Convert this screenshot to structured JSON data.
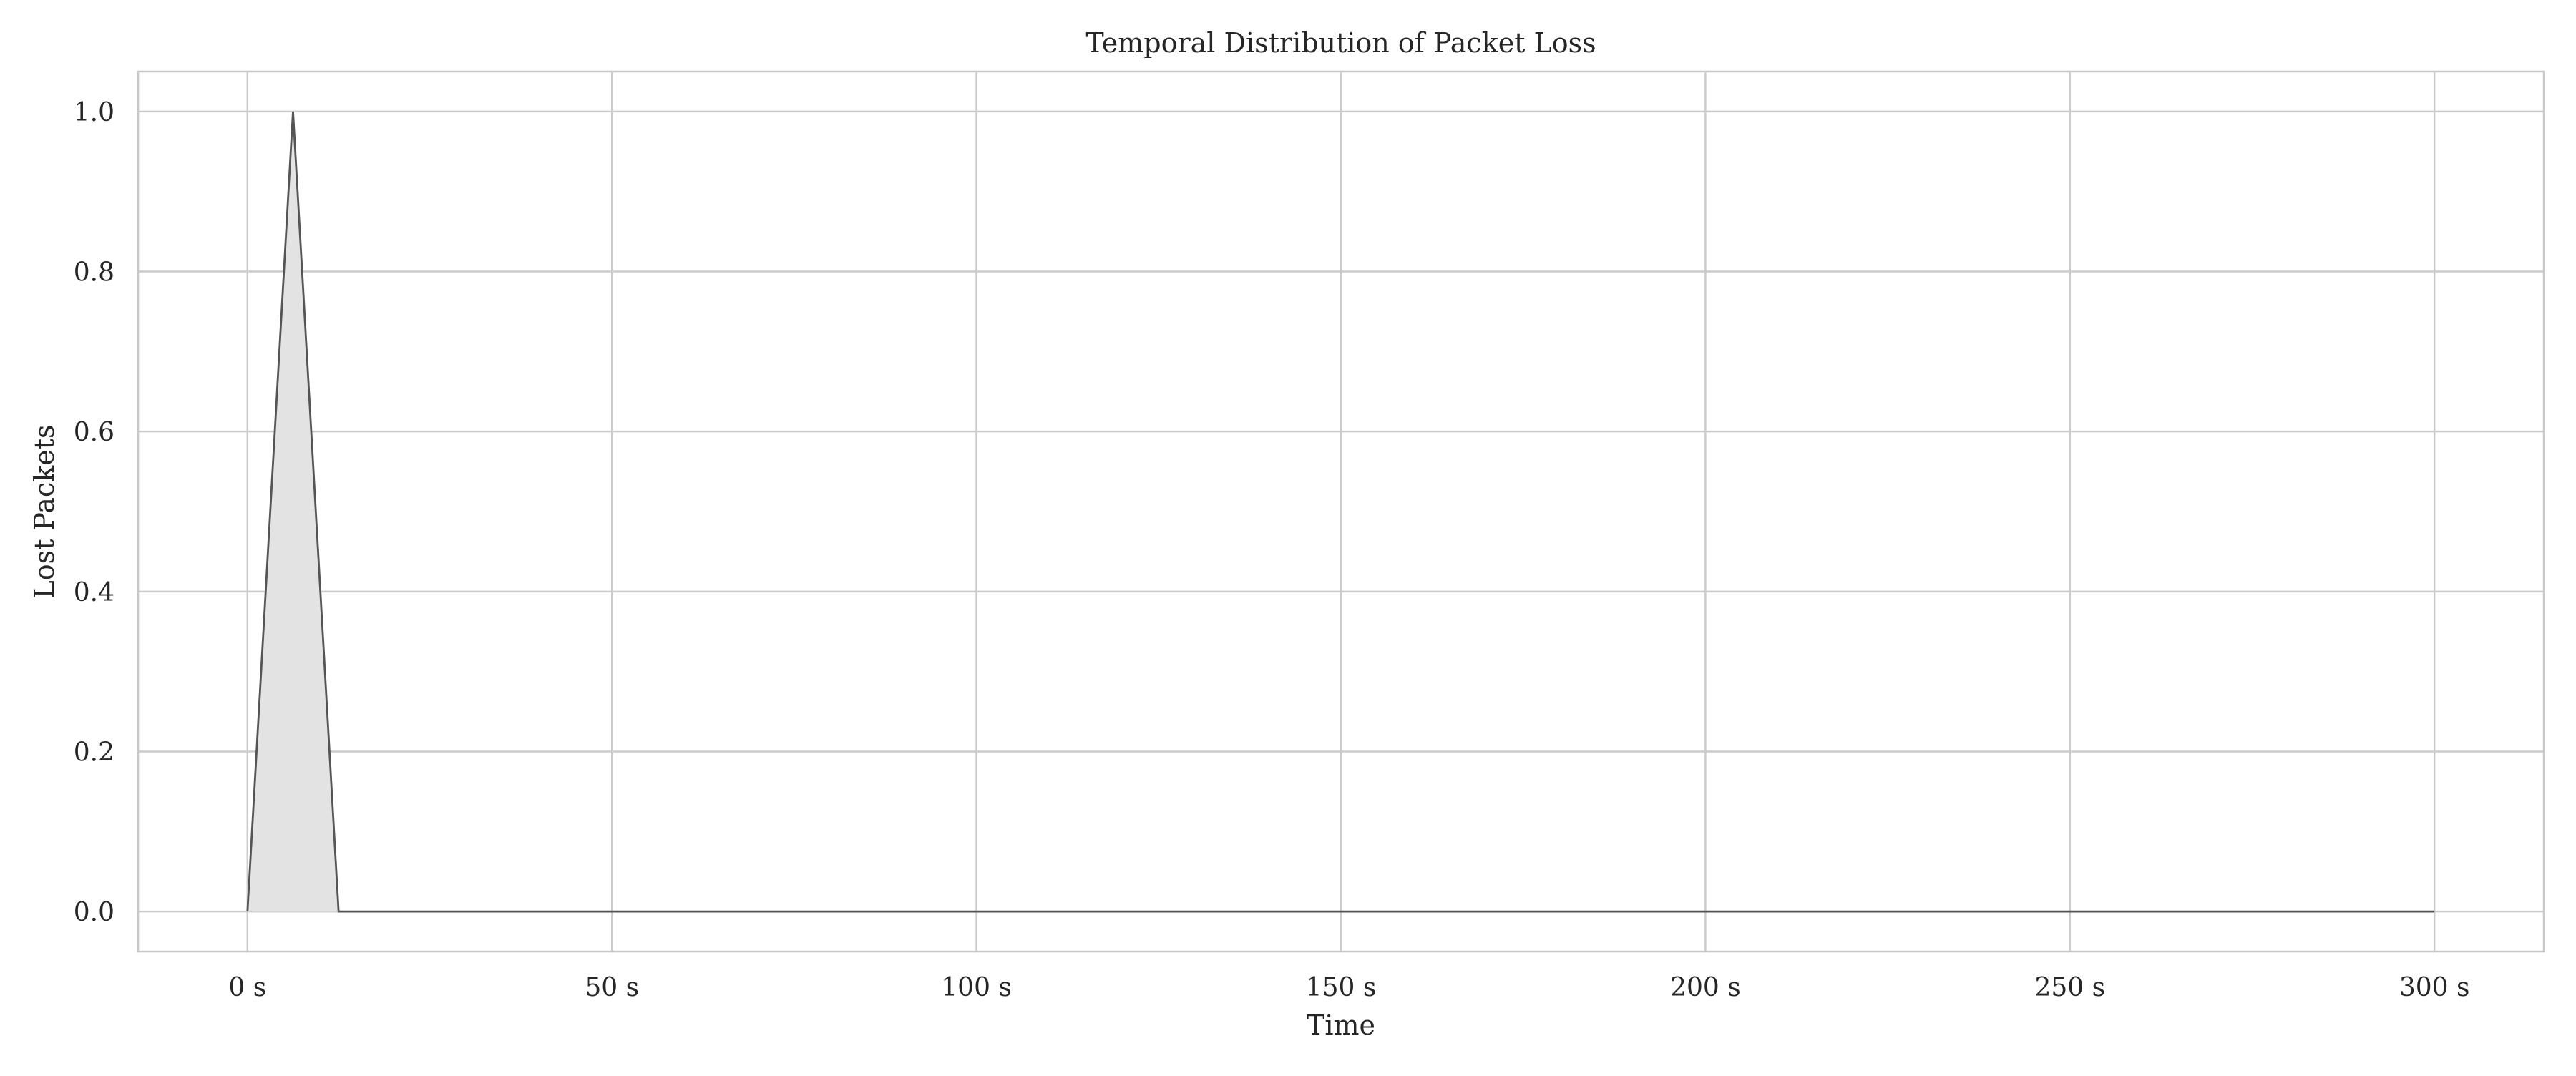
{
  "chart_data": {
    "type": "area",
    "title": "Temporal Distribution of Packet Loss",
    "xlabel": "Time",
    "ylabel": "Lost Packets",
    "x_unit_suffix": " s",
    "xlim": [
      -15,
      315
    ],
    "ylim": [
      -0.05,
      1.05
    ],
    "x_ticks": [
      0,
      50,
      100,
      150,
      200,
      250,
      300
    ],
    "x_tick_labels": [
      "0 s",
      "50 s",
      "100 s",
      "150 s",
      "200 s",
      "250 s",
      "300 s"
    ],
    "y_ticks": [
      0.0,
      0.2,
      0.4,
      0.6,
      0.8,
      1.0
    ],
    "y_tick_labels": [
      "0.0",
      "0.2",
      "0.4",
      "0.6",
      "0.8",
      "1.0"
    ],
    "grid": true,
    "legend": "none",
    "series": [
      {
        "name": "Lost Packets",
        "x": [
          0,
          6.25,
          12.5,
          300
        ],
        "y": [
          0,
          1,
          0,
          0
        ],
        "line_color": "#555555",
        "fill_color": "#e3e3e3"
      }
    ]
  },
  "colors": {
    "grid": "#cccccc",
    "spine": "#c8c8c8",
    "text": "#262626"
  }
}
